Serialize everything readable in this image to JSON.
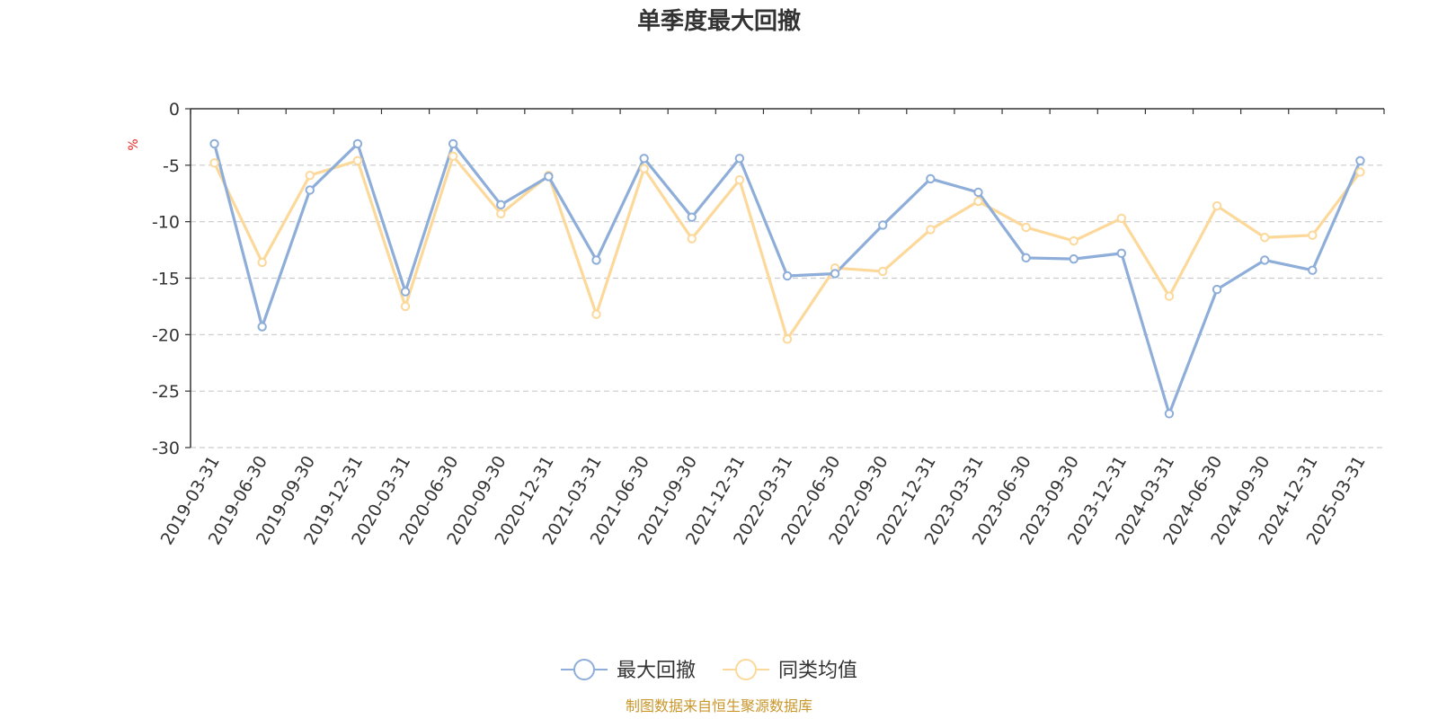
{
  "chart_data": {
    "type": "line",
    "title": "单季度最大回撤",
    "y_unit": "%",
    "ylim": [
      -30,
      0
    ],
    "yticks": [
      0,
      -5,
      -10,
      -15,
      -20,
      -25,
      -30
    ],
    "grid": true,
    "legend_position": "bottom",
    "categories": [
      "2019-03-31",
      "2019-06-30",
      "2019-09-30",
      "2019-12-31",
      "2020-03-31",
      "2020-06-30",
      "2020-09-30",
      "2020-12-31",
      "2021-03-31",
      "2021-06-30",
      "2021-09-30",
      "2021-12-31",
      "2022-03-31",
      "2022-06-30",
      "2022-09-30",
      "2022-12-31",
      "2023-03-31",
      "2023-06-30",
      "2023-09-30",
      "2023-12-31",
      "2024-03-31",
      "2024-06-30",
      "2024-09-30",
      "2024-12-31",
      "2025-03-31"
    ],
    "series": [
      {
        "name": "最大回撤",
        "color": "#8eaed9",
        "values": [
          -3.1,
          -19.3,
          -7.2,
          -3.1,
          -16.2,
          -3.1,
          -8.5,
          -6.0,
          -13.4,
          -4.4,
          -9.6,
          -4.4,
          -14.8,
          -14.6,
          -10.3,
          -6.2,
          -7.4,
          -13.2,
          -13.3,
          -12.8,
          -27.0,
          -16.0,
          -13.4,
          -14.3,
          -4.6
        ]
      },
      {
        "name": "同类均值",
        "color": "#fcd99a",
        "values": [
          -4.8,
          -13.6,
          -5.9,
          -4.6,
          -17.5,
          -4.2,
          -9.3,
          -5.9,
          -18.2,
          -5.3,
          -11.5,
          -6.3,
          -20.4,
          -14.1,
          -14.4,
          -10.7,
          -8.2,
          -10.5,
          -11.7,
          -9.7,
          -16.6,
          -8.6,
          -11.4,
          -11.2,
          -5.6
        ]
      }
    ]
  },
  "footer": {
    "source": "制图数据来自恒生聚源数据库"
  }
}
